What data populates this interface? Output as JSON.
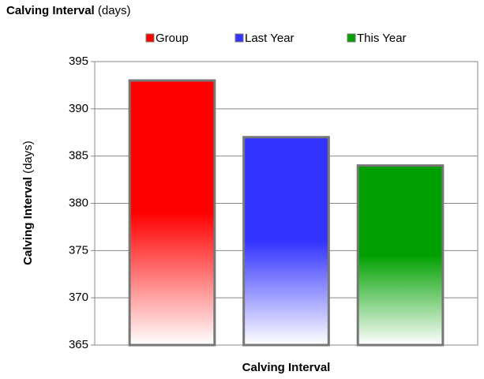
{
  "chart_data": {
    "type": "bar",
    "title": "Calving Interval",
    "title_unit": "(days)",
    "ylabel": "Calving Interval",
    "ylabel_unit": "(days)",
    "categories": [
      "Calving Interval"
    ],
    "series": [
      {
        "name": "Group",
        "color": "#ff0000",
        "values": [
          393
        ]
      },
      {
        "name": "Last Year",
        "color": "#3333ff",
        "values": [
          387
        ]
      },
      {
        "name": "This Year",
        "color": "#00a000",
        "values": [
          384
        ]
      }
    ],
    "ylim": [
      365,
      395
    ],
    "yticks": [
      365,
      370,
      375,
      380,
      385,
      390,
      395
    ],
    "grid": true,
    "legend": "top"
  }
}
